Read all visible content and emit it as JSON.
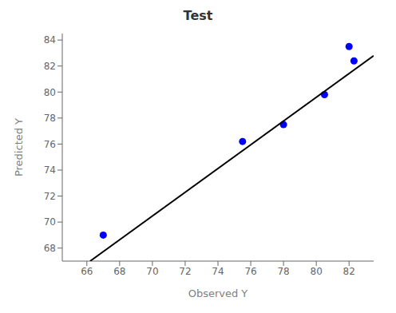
{
  "chart_data": {
    "type": "scatter",
    "title": "Test",
    "xlabel": "Observed Y",
    "ylabel": "Predicted Y",
    "series": [
      {
        "type": "scatter",
        "color": "#0000FF",
        "marker": "o",
        "x": [
          67.0,
          75.5,
          78.0,
          80.5,
          82.3,
          82.0
        ],
        "values": [
          69.0,
          76.2,
          77.5,
          79.8,
          82.4,
          83.5
        ]
      },
      {
        "type": "line",
        "color": "#000000",
        "line_style": "solid",
        "x": [
          66.2,
          83.5
        ],
        "values": [
          67.0,
          82.8
        ]
      }
    ],
    "xlim": [
      64.5,
      83.5
    ],
    "ylim": [
      67.0,
      84.5
    ],
    "xticks": [
      66,
      68,
      70,
      72,
      74,
      76,
      78,
      80,
      82
    ],
    "yticks": [
      68,
      70,
      72,
      74,
      76,
      78,
      80,
      82,
      84
    ],
    "grid": false
  }
}
